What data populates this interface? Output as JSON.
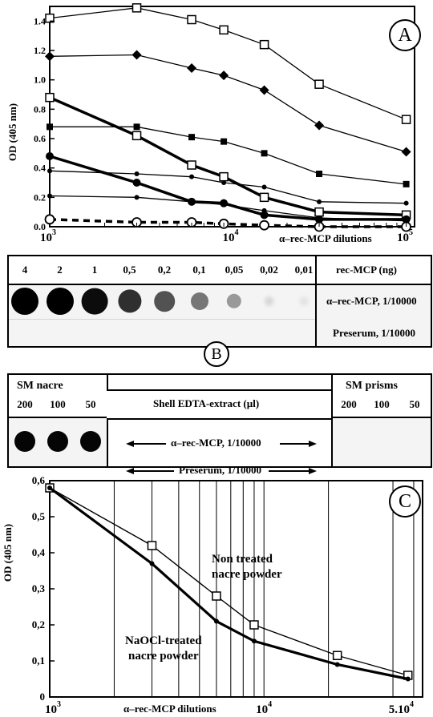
{
  "chart_data": [
    {
      "panel": "A",
      "type": "line",
      "xscale": "log",
      "xlim": [
        1000,
        100000
      ],
      "ylim": [
        0,
        1.5
      ],
      "ylabel": "OD (405 nm)",
      "xlabel": "α–rec-MCP dilutions",
      "xticks": [
        {
          "value": 1000,
          "base": "10",
          "exp": "3"
        },
        {
          "value": 10000,
          "base": "10",
          "exp": "4"
        },
        {
          "value": 100000,
          "base": "10",
          "exp": "5"
        }
      ],
      "yticks": [
        "0.0",
        "0.2",
        "0.4",
        "0.6",
        "0.8",
        "1.0",
        "1.2",
        "1.4"
      ],
      "x": [
        1000,
        3000,
        6000,
        9000,
        15000,
        30000,
        90000
      ],
      "series": [
        {
          "values": [
            1.42,
            1.49,
            1.41,
            1.34,
            1.24,
            0.97,
            0.73
          ],
          "marker": "square-open",
          "weight": "thin",
          "dash": false
        },
        {
          "values": [
            1.16,
            1.17,
            1.08,
            1.03,
            0.93,
            0.69,
            0.51
          ],
          "marker": "diamond",
          "weight": "thin",
          "dash": false
        },
        {
          "values": [
            0.88,
            0.62,
            0.42,
            0.34,
            0.2,
            0.1,
            0.08
          ],
          "marker": "square-open",
          "weight": "thick",
          "dash": false
        },
        {
          "values": [
            0.68,
            0.68,
            0.61,
            0.58,
            0.5,
            0.36,
            0.29
          ],
          "marker": "square",
          "weight": "thin",
          "dash": false
        },
        {
          "values": [
            0.48,
            0.3,
            0.17,
            0.16,
            0.08,
            0.05,
            0.05
          ],
          "marker": "circle",
          "weight": "thick",
          "dash": false
        },
        {
          "values": [
            0.38,
            0.36,
            0.34,
            0.3,
            0.27,
            0.17,
            0.16
          ],
          "marker": "dot",
          "weight": "thin",
          "dash": false
        },
        {
          "values": [
            0.21,
            0.2,
            0.17,
            0.15,
            0.11,
            0.06,
            0.04
          ],
          "marker": "dot",
          "weight": "thin",
          "dash": false
        },
        {
          "values": [
            0.05,
            0.03,
            0.03,
            0.02,
            0.01,
            0.0,
            0.0
          ],
          "marker": "circle-open",
          "weight": "thick",
          "dash": true
        }
      ],
      "panel_letter": "A"
    },
    {
      "panel": "B1",
      "type": "dot-blot",
      "columns": [
        "4",
        "2",
        "1",
        "0,5",
        "0,2",
        "0,1",
        "0,05",
        "0,02",
        "0,01"
      ],
      "column_header": "rec-MCP (ng)",
      "rows": [
        "α–rec-MCP, 1/10000",
        "Preserum, 1/10000"
      ],
      "row1_intensity": [
        1.0,
        1.0,
        0.95,
        0.8,
        0.65,
        0.5,
        0.35,
        0.08,
        0.03
      ],
      "row2_intensity": [
        0,
        0,
        0,
        0,
        0,
        0,
        0,
        0,
        0
      ]
    },
    {
      "panel": "B2",
      "type": "dot-blot",
      "left_title": "SM nacre",
      "right_title": "SM prisms",
      "middle_header": "Shell EDTA-extract (µl)",
      "columns": [
        "200",
        "100",
        "50"
      ],
      "row_labels": [
        "α–rec-MCP, 1/10000",
        "Preserum, 1/10000"
      ],
      "nacre_intensity": [
        1.0,
        1.0,
        1.0
      ],
      "prism_intensity": [
        0,
        0,
        0
      ],
      "panel_letter": "B"
    },
    {
      "panel": "C",
      "type": "line",
      "xscale": "log",
      "xlim": [
        1000,
        55000
      ],
      "ylim": [
        0,
        0.6
      ],
      "ylabel": "OD (405 nm)",
      "xlabel": "α–rec-MCP dilutions",
      "xticks": [
        {
          "value": 1000,
          "base": "10",
          "exp": "3"
        },
        {
          "value": 10000,
          "base": "10",
          "exp": "4"
        },
        {
          "value": 50000,
          "base": "5.10",
          "exp": "4"
        }
      ],
      "yticks": [
        "0",
        "0,1",
        "0,2",
        "0,3",
        "0,4",
        "0,5",
        "0,6"
      ],
      "vgrid": [
        2000,
        3000,
        4000,
        5000,
        6000,
        7000,
        8000,
        9000,
        10000,
        20000,
        40000,
        50000
      ],
      "series": [
        {
          "name": "Non treated nacre powder",
          "lines": [
            "Non treated",
            "nacre powder"
          ],
          "x": [
            1000,
            3000,
            6000,
            9000,
            22000,
            47000
          ],
          "values": [
            0.58,
            0.42,
            0.28,
            0.2,
            0.115,
            0.06
          ],
          "marker": "square-open",
          "weight": "thin"
        },
        {
          "name": "NaOCl-treated nacre powder",
          "lines": [
            "NaOCl-treated",
            "nacre powder"
          ],
          "x": [
            1000,
            3000,
            6000,
            9000,
            22000,
            47000
          ],
          "values": [
            0.58,
            0.37,
            0.21,
            0.155,
            0.09,
            0.05
          ],
          "marker": "dot",
          "weight": "thick"
        }
      ],
      "panel_letter": "C"
    }
  ]
}
